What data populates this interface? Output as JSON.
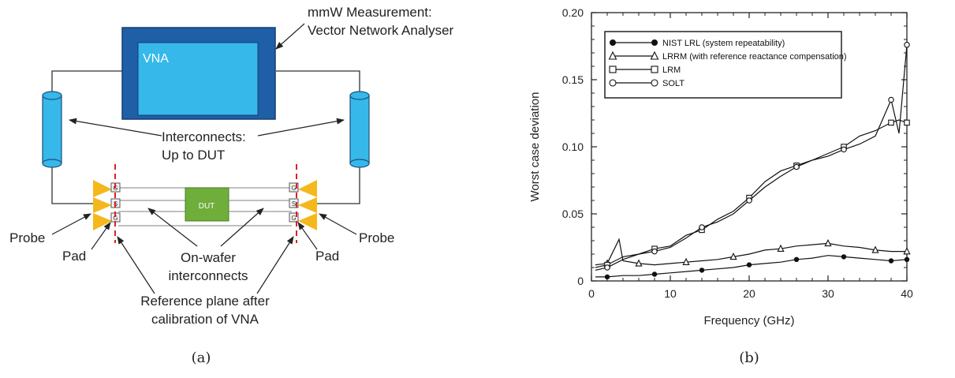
{
  "left": {
    "annotation_line1": "mmW Measurement:",
    "annotation_line2": "Vector Network Analyser",
    "vna_label": "VNA",
    "interconnects_line1": "Interconnects:",
    "interconnects_line2": "Up to DUT",
    "dut_label": "DUT",
    "probe_left": "Probe",
    "probe_right": "Probe",
    "pad_left": "Pad",
    "pad_right": "Pad",
    "onwafer_line1": "On-wafer",
    "onwafer_line2": "interconnects",
    "refplane_line1": "Reference plane after",
    "refplane_line2": "calibration of VNA",
    "pad_letters": [
      "G",
      "S",
      "G"
    ],
    "caption": "(a)",
    "colors": {
      "vna_outer": "#1f5fa8",
      "vna_inner": "#36b8ea",
      "cylinder": "#36b8ea",
      "probe": "#f5b81c",
      "dut": "#6fae3a",
      "ref_line": "#e02020"
    }
  },
  "right": {
    "caption": "(b)"
  },
  "chart_data": {
    "type": "line",
    "xlabel": "Frequency (GHz)",
    "ylabel": "Worst case deviation",
    "xlim": [
      0,
      40
    ],
    "ylim": [
      0,
      0.2
    ],
    "xticks": [
      "0",
      "10",
      "20",
      "30",
      "40"
    ],
    "yticks": [
      "0",
      "0.05",
      "0.10",
      "0.15",
      "0.20"
    ],
    "legend_position": "top-left",
    "series": [
      {
        "name": "NIST LRL (system repeatability)",
        "marker": "filled-circle",
        "x": [
          0.5,
          2,
          4,
          6,
          8,
          10,
          12,
          14,
          16,
          18,
          20,
          22,
          24,
          26,
          28,
          30,
          32,
          34,
          36,
          38,
          40
        ],
        "y": [
          0.003,
          0.003,
          0.004,
          0.004,
          0.005,
          0.006,
          0.007,
          0.008,
          0.009,
          0.01,
          0.012,
          0.013,
          0.014,
          0.016,
          0.017,
          0.019,
          0.018,
          0.017,
          0.016,
          0.015,
          0.016
        ]
      },
      {
        "name": "LRRM (with reference reactance compensation)",
        "marker": "open-triangle",
        "x": [
          0.5,
          2,
          3.5,
          4,
          6,
          8,
          10,
          12,
          14,
          16,
          18,
          20,
          22,
          24,
          26,
          28,
          30,
          32,
          34,
          36,
          38,
          40
        ],
        "y": [
          0.012,
          0.013,
          0.031,
          0.015,
          0.013,
          0.012,
          0.013,
          0.014,
          0.015,
          0.016,
          0.018,
          0.02,
          0.023,
          0.024,
          0.026,
          0.027,
          0.028,
          0.026,
          0.025,
          0.023,
          0.022,
          0.022
        ]
      },
      {
        "name": "LRM",
        "marker": "open-square",
        "x": [
          0.5,
          2,
          4,
          6,
          8,
          10,
          12,
          14,
          16,
          18,
          20,
          22,
          24,
          26,
          28,
          30,
          32,
          34,
          36,
          38,
          39,
          40
        ],
        "y": [
          0.01,
          0.012,
          0.018,
          0.02,
          0.024,
          0.026,
          0.034,
          0.038,
          0.046,
          0.052,
          0.062,
          0.074,
          0.082,
          0.086,
          0.09,
          0.095,
          0.1,
          0.108,
          0.112,
          0.118,
          0.12,
          0.118
        ]
      },
      {
        "name": "SOLT",
        "marker": "open-circle",
        "x": [
          0.5,
          2,
          4,
          6,
          8,
          10,
          12,
          14,
          16,
          18,
          20,
          22,
          24,
          26,
          28,
          30,
          32,
          34,
          36,
          38,
          39,
          40
        ],
        "y": [
          0.008,
          0.01,
          0.016,
          0.02,
          0.022,
          0.025,
          0.032,
          0.04,
          0.044,
          0.05,
          0.06,
          0.07,
          0.078,
          0.085,
          0.09,
          0.093,
          0.098,
          0.102,
          0.108,
          0.135,
          0.11,
          0.176
        ]
      }
    ]
  }
}
